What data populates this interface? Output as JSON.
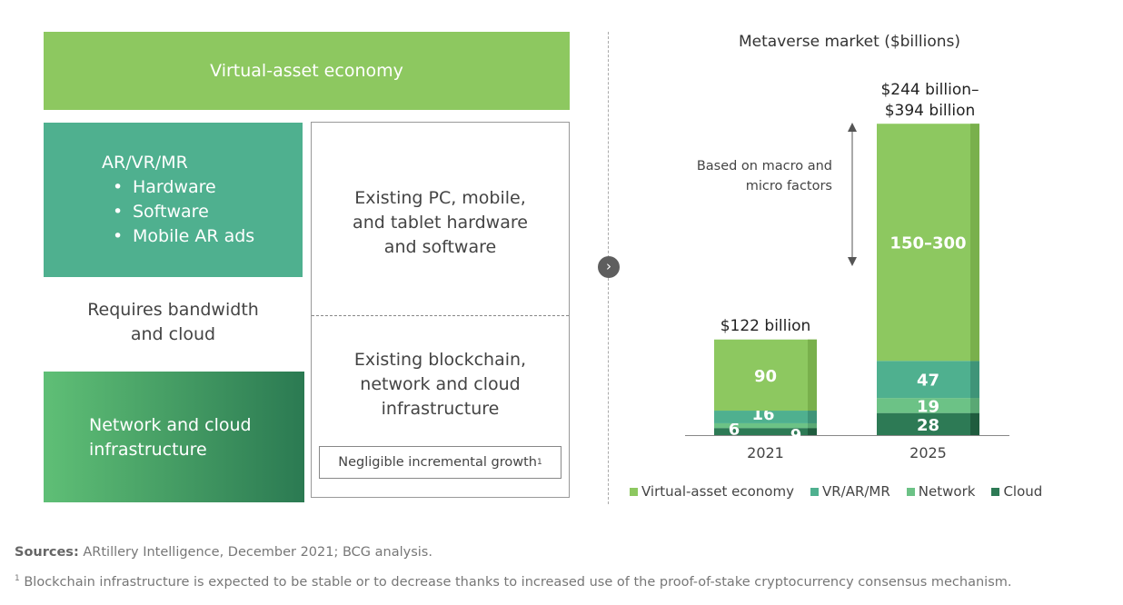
{
  "left_panel": {
    "virtual_asset": "Virtual-asset economy",
    "arvr_title": "AR/VR/MR",
    "arvr_items": [
      "Hardware",
      "Software",
      "Mobile AR ads"
    ],
    "requires_line1": "Requires bandwidth",
    "requires_line2": "and cloud",
    "network_line1": "Network and cloud",
    "network_line2": "infrastructure",
    "existing_pc": [
      "Existing PC, mobile,",
      "and tablet hardware",
      "and software"
    ],
    "existing_bc": [
      "Existing blockchain,",
      "network and cloud",
      "infrastructure"
    ],
    "negligible": "Negligible incremental growth",
    "negligible_sup": "1"
  },
  "colors": {
    "virtual": "#8dc860",
    "vrar": "#4fb08f",
    "network": "#6cc286",
    "cloud": "#2d7a55"
  },
  "chart_data": {
    "type": "bar",
    "stacked": true,
    "title": "Metaverse market ($billions)",
    "categories": [
      "2021",
      "2025"
    ],
    "series": [
      {
        "name": "Cloud",
        "values": [
          9,
          28
        ]
      },
      {
        "name": "Network",
        "values": [
          6,
          19
        ]
      },
      {
        "name": "VR/AR/MR",
        "values": [
          16,
          47
        ]
      },
      {
        "name": "Virtual-asset economy",
        "values": [
          90,
          150
        ]
      }
    ],
    "virtual_range_label_2025": "150–300",
    "totals": [
      "$122 billion",
      "$244 billion–",
      "$394 billion"
    ],
    "annotation": [
      "Based on macro and",
      "micro factors"
    ],
    "legend": [
      "Virtual-asset economy",
      "VR/AR/MR",
      "Network",
      "Cloud"
    ],
    "legend_placement": "bottom"
  },
  "sources_label": "Sources:",
  "sources_text": " ARtillery Intelligence, December 2021; BCG analysis.",
  "footnote_mark": "1",
  "footnote_text": " Blockchain infrastructure is expected to be stable or to decrease thanks to increased use of the proof-of-stake cryptocurrency consensus mechanism."
}
